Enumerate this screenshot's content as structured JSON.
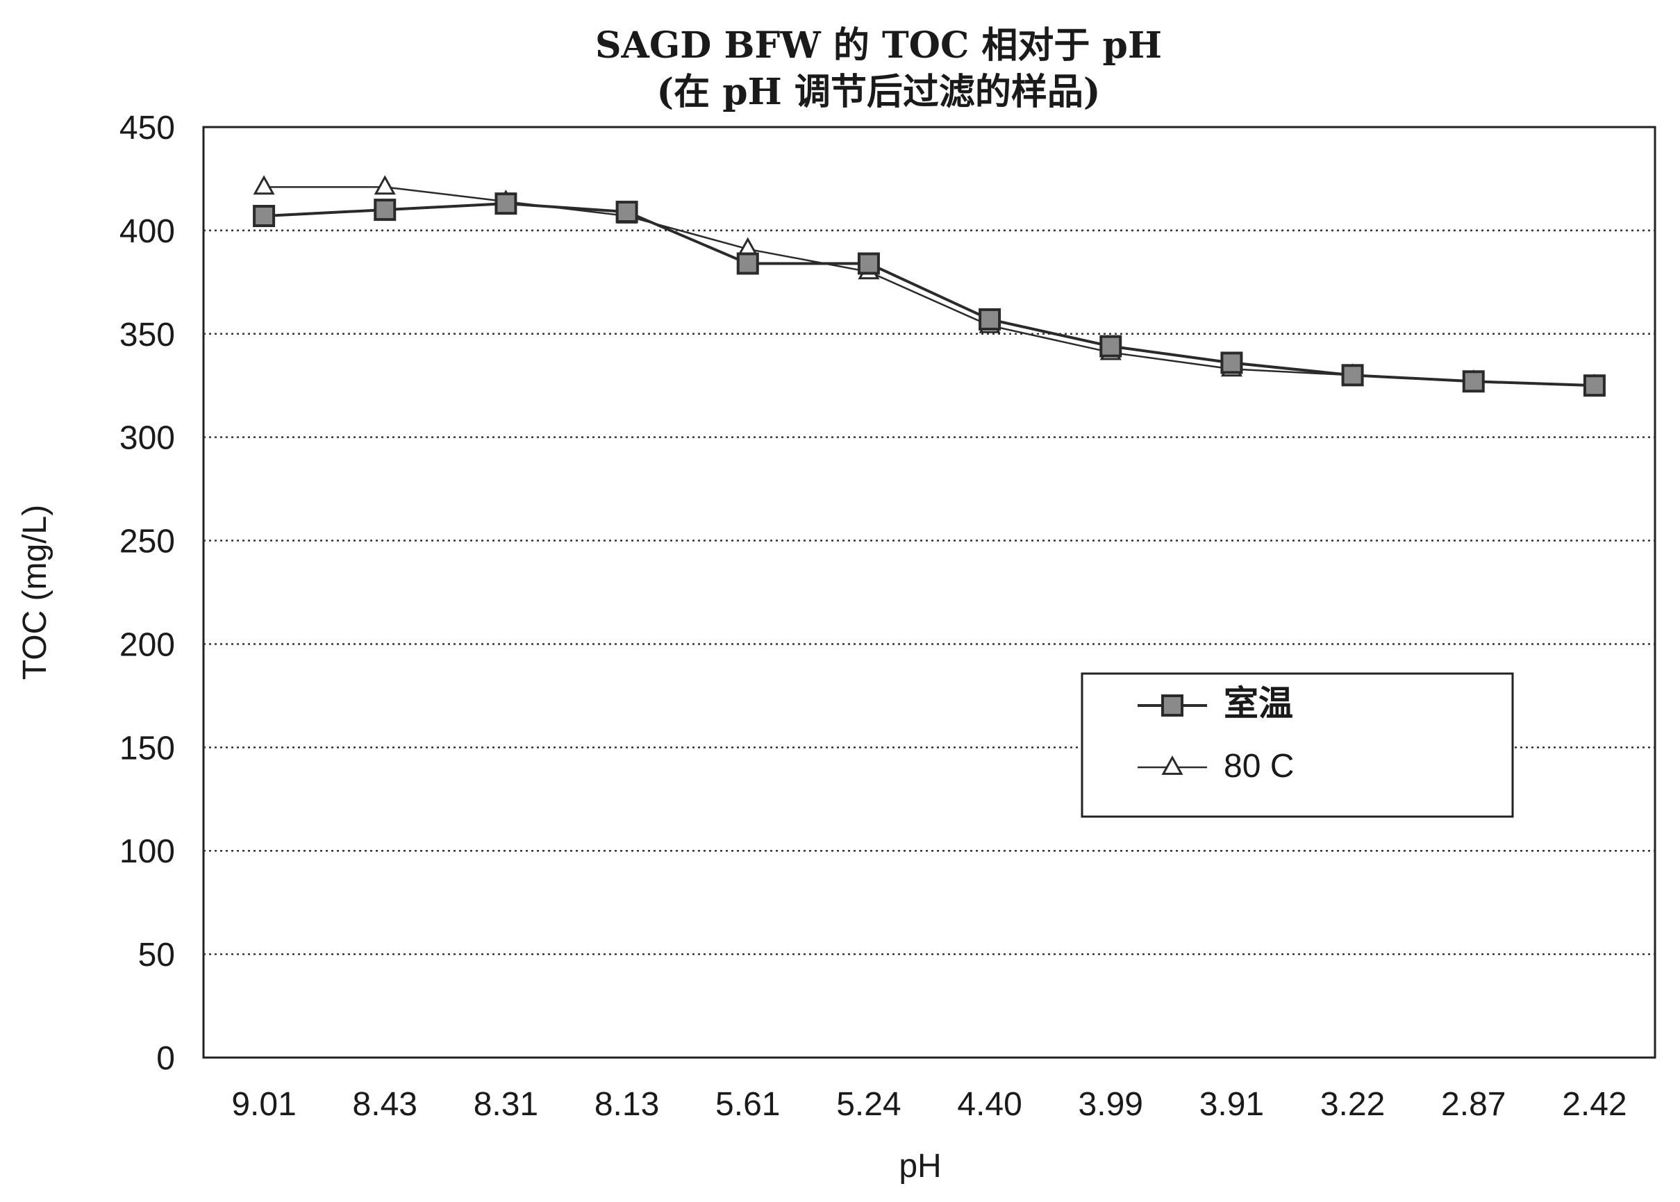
{
  "chart_data": {
    "type": "line",
    "title": "SAGD BFW 的 TOC 相对于 pH",
    "subtitle": "(在 pH 调节后过滤的样品)",
    "xlabel": "pH",
    "ylabel": "TOC (mg/L)",
    "categories": [
      "9.01",
      "8.43",
      "8.31",
      "8.13",
      "5.61",
      "5.24",
      "4.40",
      "3.99",
      "3.91",
      "3.22",
      "2.87",
      "2.42"
    ],
    "ylim": [
      0,
      450
    ],
    "yticks": [
      "0",
      "50",
      "100",
      "150",
      "200",
      "250",
      "300",
      "350",
      "400",
      "450"
    ],
    "grid": "horizontal dotted",
    "legend_position": "center-right",
    "series": [
      {
        "name": "室温",
        "marker": "square",
        "color": "#2a2a2a",
        "values": [
          407,
          410,
          413,
          409,
          384,
          384,
          357,
          344,
          336,
          330,
          327,
          325
        ]
      },
      {
        "name": "80 C",
        "marker": "triangle",
        "color": "#2a2a2a",
        "values": [
          421,
          421,
          414,
          407,
          391,
          380,
          354,
          341,
          333,
          330,
          327,
          325
        ]
      }
    ]
  }
}
